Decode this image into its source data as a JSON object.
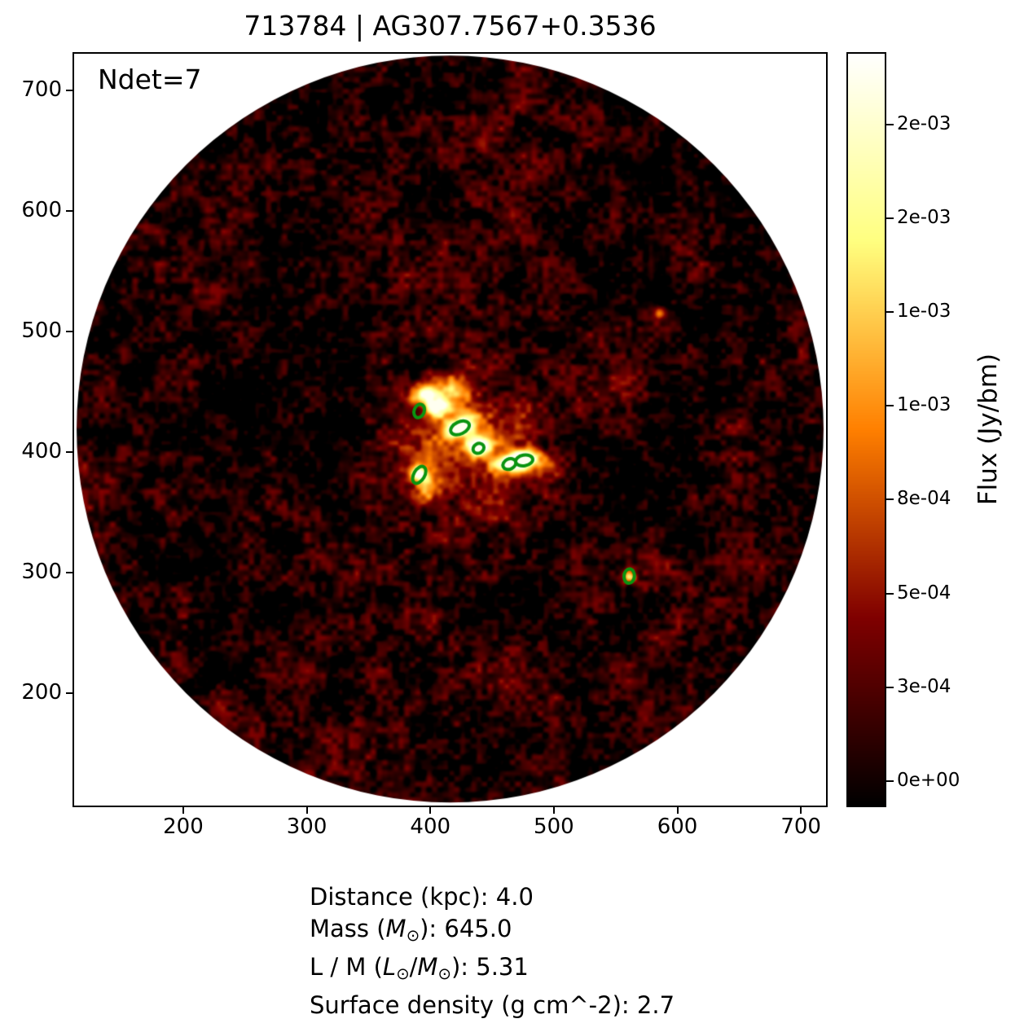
{
  "chart_data": {
    "type": "heatmap",
    "title": "713784 | AG307.7567+0.3536",
    "annotation": "Ndet=7",
    "xlabel": "",
    "ylabel": "",
    "xlim": [
      111,
      721
    ],
    "ylim": [
      106,
      731
    ],
    "grid": false,
    "colormap": "afmhot",
    "x_ticks": [
      {
        "value": 200,
        "label": "200"
      },
      {
        "value": 300,
        "label": "300"
      },
      {
        "value": 400,
        "label": "400"
      },
      {
        "value": 500,
        "label": "500"
      },
      {
        "value": 600,
        "label": "600"
      },
      {
        "value": 700,
        "label": "700"
      }
    ],
    "y_ticks": [
      {
        "value": 200,
        "label": "200"
      },
      {
        "value": 300,
        "label": "300"
      },
      {
        "value": 400,
        "label": "400"
      },
      {
        "value": 500,
        "label": "500"
      },
      {
        "value": 600,
        "label": "600"
      },
      {
        "value": 700,
        "label": "700"
      }
    ],
    "aperture": {
      "cx": 416,
      "cy": 419,
      "r": 306
    },
    "colorbar": {
      "label": "Flux (Jy/bm)",
      "vmin": -6.7e-05,
      "vmax": 0.00194,
      "ticks": [
        {
          "value": 0.0,
          "label": "0e+00"
        },
        {
          "value": 0.00025,
          "label": "3e-04"
        },
        {
          "value": 0.0005,
          "label": "5e-04"
        },
        {
          "value": 0.00075,
          "label": "8e-04"
        },
        {
          "value": 0.001,
          "label": "1e-03"
        },
        {
          "value": 0.00125,
          "label": "1e-03"
        },
        {
          "value": 0.0015,
          "label": "2e-03"
        },
        {
          "value": 0.00175,
          "label": "2e-03"
        }
      ]
    },
    "detections": [
      {
        "x": 391,
        "y": 434,
        "rx": 5.6,
        "ry": 4.2,
        "angle": 70
      },
      {
        "x": 424,
        "y": 420,
        "rx": 8.0,
        "ry": 5.0,
        "angle": 25
      },
      {
        "x": 439,
        "y": 403,
        "rx": 4.6,
        "ry": 3.9,
        "angle": 30
      },
      {
        "x": 464,
        "y": 390,
        "rx": 5.5,
        "ry": 4.2,
        "angle": 25
      },
      {
        "x": 476,
        "y": 393,
        "rx": 7.0,
        "ry": 4.5,
        "angle": 10
      },
      {
        "x": 391,
        "y": 381,
        "rx": 7.5,
        "ry": 4.5,
        "angle": 60
      },
      {
        "x": 561,
        "y": 297,
        "rx": 5.8,
        "ry": 4.3,
        "angle": 85
      }
    ],
    "emission_blobs": [
      {
        "x": 394,
        "y": 448,
        "amp": 0.85,
        "sx": 8,
        "sy": 6,
        "angle": 20
      },
      {
        "x": 405,
        "y": 437,
        "amp": 0.7,
        "sx": 7,
        "sy": 6,
        "angle": 30
      },
      {
        "x": 424,
        "y": 421,
        "amp": 0.95,
        "sx": 10,
        "sy": 5.5,
        "angle": 25
      },
      {
        "x": 440,
        "y": 404,
        "amp": 0.85,
        "sx": 7,
        "sy": 6,
        "angle": 20
      },
      {
        "x": 463,
        "y": 391,
        "amp": 0.95,
        "sx": 9,
        "sy": 5.5,
        "angle": 15
      },
      {
        "x": 477,
        "y": 394,
        "amp": 0.9,
        "sx": 7,
        "sy": 5,
        "angle": 10
      },
      {
        "x": 391,
        "y": 381,
        "amp": 0.75,
        "sx": 4.5,
        "sy": 7,
        "angle": 60
      },
      {
        "x": 398,
        "y": 368,
        "amp": 0.4,
        "sx": 7,
        "sy": 6,
        "angle": 45
      },
      {
        "x": 428,
        "y": 412,
        "amp": 0.4,
        "sx": 34,
        "sy": 26,
        "angle": 20
      },
      {
        "x": 452,
        "y": 352,
        "amp": 0.2,
        "sx": 26,
        "sy": 20,
        "angle": 10
      },
      {
        "x": 492,
        "y": 386,
        "amp": 0.4,
        "sx": 14,
        "sy": 9,
        "angle": 0
      },
      {
        "x": 415,
        "y": 452,
        "amp": 0.45,
        "sx": 12,
        "sy": 11,
        "angle": 0
      },
      {
        "x": 400,
        "y": 545,
        "amp": 0.12,
        "sx": 30,
        "sy": 20,
        "angle": 0
      },
      {
        "x": 540,
        "y": 455,
        "amp": 0.12,
        "sx": 28,
        "sy": 18,
        "angle": 0
      },
      {
        "x": 586,
        "y": 515,
        "amp": 0.5,
        "sx": 3.5,
        "sy": 3.5,
        "angle": 0
      },
      {
        "x": 561,
        "y": 297,
        "amp": 0.55,
        "sx": 4,
        "sy": 4,
        "angle": 0
      }
    ],
    "noise": {
      "seed": 42,
      "base": 0.05,
      "octaves": [
        {
          "cell": 4.5,
          "amp": 0.12
        },
        {
          "cell": 10,
          "amp": 0.09
        },
        {
          "cell": 28,
          "amp": 0.08
        },
        {
          "cell": 90,
          "amp": 0.05
        }
      ]
    },
    "colors": {
      "detection_ellipse": "#0a9410",
      "spine": "#000000",
      "outside_aperture": "#ffffff"
    }
  },
  "info_lines": [
    [
      {
        "t": "Distance (kpc): 4.0"
      }
    ],
    [
      {
        "t": "Mass ("
      },
      {
        "t": "M",
        "i": 1
      },
      {
        "t": "⊙",
        "s": 1
      },
      {
        "t": "): 645.0"
      }
    ],
    [
      {
        "t": "L / M ("
      },
      {
        "t": "L",
        "i": 1
      },
      {
        "t": "⊙",
        "s": 1
      },
      {
        "t": "/"
      },
      {
        "t": "M",
        "i": 1
      },
      {
        "t": "⊙",
        "s": 1
      },
      {
        "t": "): 5.31"
      }
    ],
    [
      {
        "t": "Surface density (g cm^-2): 2.7"
      }
    ]
  ]
}
